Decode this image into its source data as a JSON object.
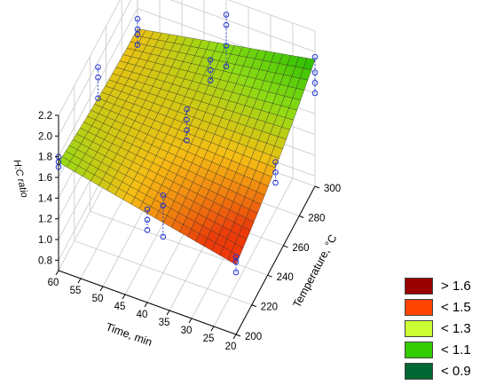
{
  "chart_data": {
    "type": "surface3d",
    "xlabel": "Time, min",
    "ylabel": "Temperature, °C",
    "zlabel": "H:C ratio",
    "x_ticks": [
      20,
      25,
      30,
      35,
      40,
      45,
      50,
      55,
      60
    ],
    "y_ticks": [
      200,
      220,
      240,
      260,
      280,
      300
    ],
    "z_ticks": [
      "0.8",
      "1.0",
      "1.2",
      "1.4",
      "1.6",
      "1.8",
      "2.0",
      "2.2"
    ],
    "xlim": [
      20,
      60
    ],
    "ylim": [
      200,
      300
    ],
    "zlim": [
      0.7,
      2.2
    ],
    "surface_corners": [
      {
        "time": 60,
        "temperature": 200,
        "hc": 1.72
      },
      {
        "time": 60,
        "temperature": 300,
        "hc": 1.58
      },
      {
        "time": 20,
        "temperature": 200,
        "hc": 1.35
      },
      {
        "time": 20,
        "temperature": 300,
        "hc": 1.68
      }
    ],
    "observations": [
      {
        "time": 60,
        "temperature": 200,
        "hc": [
          1.7,
          1.75,
          1.8
        ]
      },
      {
        "time": 60,
        "temperature": 250,
        "hc": [
          1.65,
          1.85,
          1.95
        ]
      },
      {
        "time": 60,
        "temperature": 300,
        "hc": [
          1.45,
          1.55,
          1.6,
          1.7
        ]
      },
      {
        "time": 40,
        "temperature": 200,
        "hc": [
          1.4,
          1.5,
          1.6
        ]
      },
      {
        "time": 40,
        "temperature": 220,
        "hc": [
          1.05,
          1.35,
          1.45
        ]
      },
      {
        "time": 40,
        "temperature": 250,
        "hc": [
          1.55,
          1.65,
          1.75,
          1.85
        ]
      },
      {
        "time": 40,
        "temperature": 280,
        "hc": [
          1.7,
          1.8,
          1.9
        ]
      },
      {
        "time": 40,
        "temperature": 300,
        "hc": [
          1.55,
          1.75,
          1.95,
          2.05
        ]
      },
      {
        "time": 20,
        "temperature": 200,
        "hc": [
          1.3,
          1.4,
          1.45
        ]
      },
      {
        "time": 20,
        "temperature": 250,
        "hc": [
          1.45,
          1.55,
          1.65
        ]
      },
      {
        "time": 20,
        "temperature": 300,
        "hc": [
          1.6,
          1.7,
          1.8,
          1.95
        ]
      }
    ],
    "legend": [
      {
        "label": "> 1.6",
        "color": "#990000"
      },
      {
        "label": "< 1.5",
        "color": "#ff4400"
      },
      {
        "label": "< 1.3",
        "color": "#ccff33"
      },
      {
        "label": "< 1.1",
        "color": "#33cc00"
      },
      {
        "label": "< 0.9",
        "color": "#006633"
      }
    ]
  }
}
